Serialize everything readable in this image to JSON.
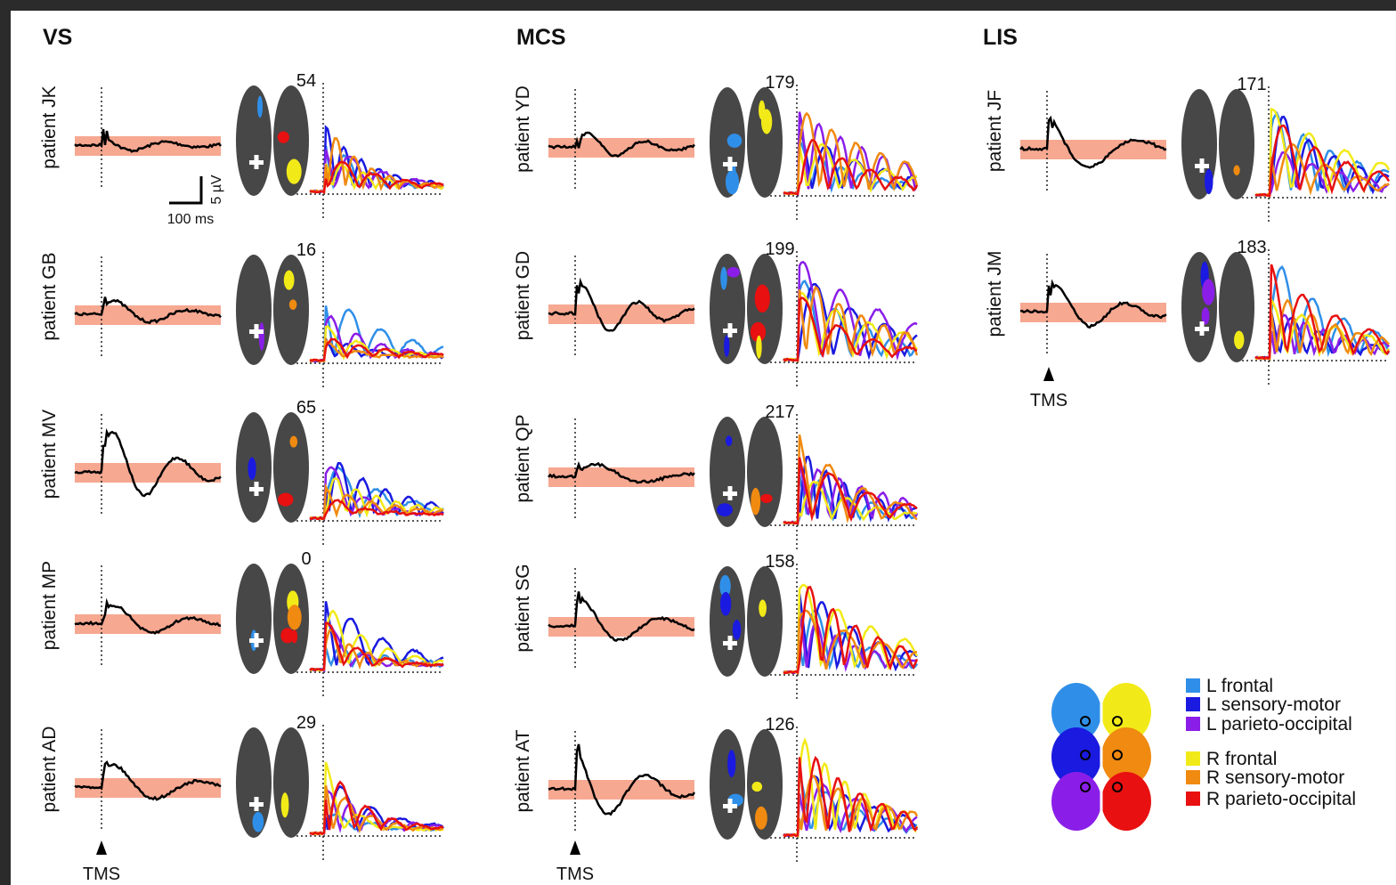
{
  "groups": [
    {
      "title": "VS",
      "patients": [
        {
          "label": "patient  JK",
          "count": 54
        },
        {
          "label": "patient  GB",
          "count": 16
        },
        {
          "label": "patient  MV",
          "count": 65
        },
        {
          "label": "patient  MP",
          "count": 0
        },
        {
          "label": "patient  AD",
          "count": 29
        }
      ]
    },
    {
      "title": "MCS",
      "patients": [
        {
          "label": "patient  YD",
          "count": 179
        },
        {
          "label": "patient  GD",
          "count": 199
        },
        {
          "label": "patient  QP",
          "count": 217
        },
        {
          "label": "patient  SG",
          "count": 158
        },
        {
          "label": "patient  AT",
          "count": 126
        }
      ]
    },
    {
      "title": "LIS",
      "patients": [
        {
          "label": "patient  JF",
          "count": 171
        },
        {
          "label": "patient  JM",
          "count": 183
        }
      ]
    }
  ],
  "scale_bar": {
    "time": "100 ms",
    "amplitude": "5 µV"
  },
  "stimulus_label": "TMS",
  "legend": [
    {
      "label": "L frontal",
      "color": "#2f8fe8"
    },
    {
      "label": "L sensory-motor",
      "color": "#1a1ae0"
    },
    {
      "label": "L parieto-occipital",
      "color": "#8a1ee8"
    },
    {
      "label": "R frontal",
      "color": "#f2ea18"
    },
    {
      "label": "R sensory-motor",
      "color": "#f08a10"
    },
    {
      "label": "R parieto-occipital",
      "color": "#e81010"
    }
  ]
}
